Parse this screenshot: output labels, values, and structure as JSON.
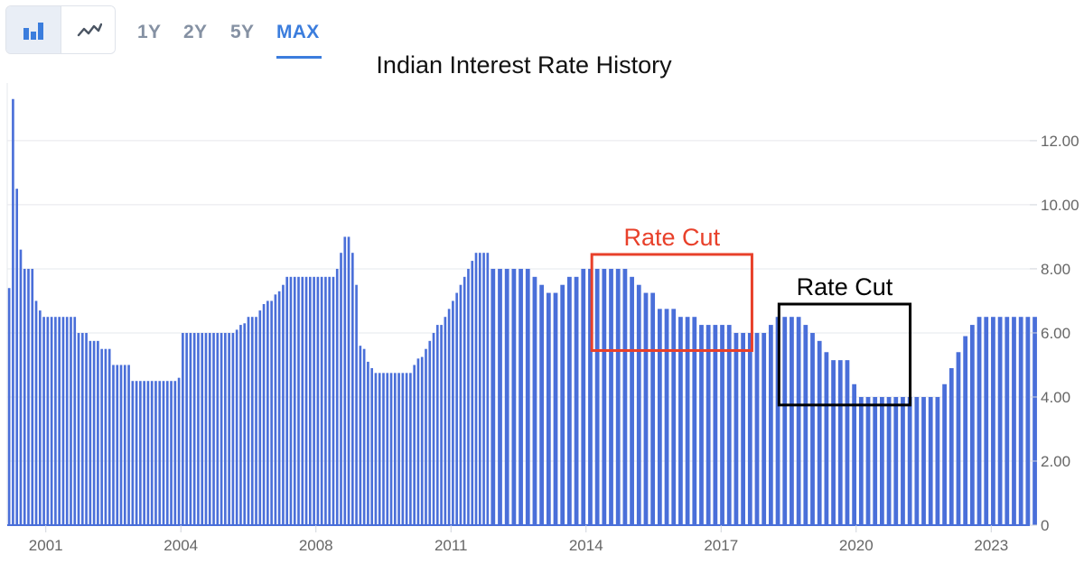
{
  "toolbar": {
    "chart_type_buttons": [
      {
        "name": "bar-chart-icon",
        "active": true
      },
      {
        "name": "line-chart-icon",
        "active": false
      }
    ],
    "ranges": [
      "1Y",
      "2Y",
      "5Y",
      "MAX"
    ],
    "active_range": "MAX"
  },
  "colors": {
    "bar": "#4a6fd9",
    "axis": "#4a6fd9",
    "grid": "#e6e8ec",
    "tick_text": "#666666",
    "accent": "#3b7ddd",
    "annotation_red": "#e8402a",
    "annotation_black": "#000000"
  },
  "chart_data": {
    "type": "bar",
    "title": "Indian Interest Rate History",
    "xlabel": "",
    "ylabel": "",
    "ylim": [
      0,
      13.8
    ],
    "y_ticks": [
      {
        "value": 0,
        "label": "0"
      },
      {
        "value": 2,
        "label": "2.00"
      },
      {
        "value": 4,
        "label": "4.00"
      },
      {
        "value": 6,
        "label": "6.00"
      },
      {
        "value": 8,
        "label": "8.00"
      },
      {
        "value": 10,
        "label": "10.00"
      },
      {
        "value": 12,
        "label": "12.00"
      }
    ],
    "x_ticks": [
      {
        "year": 2001.0,
        "label": "2001"
      },
      {
        "year": 2004.5,
        "label": "2004"
      },
      {
        "year": 2008.0,
        "label": "2008"
      },
      {
        "year": 2011.5,
        "label": "2011"
      },
      {
        "year": 2015.0,
        "label": "2014"
      },
      {
        "year": 2018.5,
        "label": "2017"
      },
      {
        "year": 2022.0,
        "label": "2020"
      },
      {
        "year": 2025.5,
        "label": "2023"
      }
    ],
    "x_range": [
      2000.0,
      2026.5
    ],
    "grid": true,
    "legend": "none",
    "segments": [
      {
        "start": 2000.0,
        "step": 0.1,
        "values": [
          7.4,
          13.3,
          10.5,
          8.6,
          8.0,
          8.0,
          8.0,
          7.0,
          6.7,
          6.5,
          6.5,
          6.5,
          6.5,
          6.5,
          6.5,
          6.5,
          6.5,
          6.5,
          6.0,
          6.0,
          6.0,
          5.75,
          5.75,
          5.75,
          5.5,
          5.5,
          5.5,
          5.0,
          5.0,
          5.0,
          5.0,
          5.0,
          4.5,
          4.5,
          4.5,
          4.5,
          4.5,
          4.5,
          4.5,
          4.5,
          4.5,
          4.5,
          4.5,
          4.5,
          4.6,
          6.0,
          6.0,
          6.0,
          6.0,
          6.0,
          6.0,
          6.0,
          6.0,
          6.0,
          6.0,
          6.0,
          6.0,
          6.0,
          6.0,
          6.1,
          6.25,
          6.3,
          6.5,
          6.5,
          6.5,
          6.7,
          6.9,
          7.0,
          7.0,
          7.2,
          7.3,
          7.5,
          7.75,
          7.75,
          7.75,
          7.75,
          7.75,
          7.75,
          7.75,
          7.75,
          7.75,
          7.75,
          7.75,
          7.75,
          7.75,
          8.0,
          8.5,
          9.0,
          9.0,
          8.5,
          7.5,
          5.6,
          5.5,
          5.1,
          4.9,
          4.75,
          4.75,
          4.75,
          4.75,
          4.75,
          4.75,
          4.75,
          4.75,
          4.75,
          4.75,
          5.0,
          5.2,
          5.25,
          5.5,
          5.75,
          6.0,
          6.25,
          6.25,
          6.5,
          6.75,
          7.0,
          7.25,
          7.5,
          7.75,
          8.0,
          8.25,
          8.5,
          8.5,
          8.5,
          8.5
        ]
      },
      {
        "start": 2012.5,
        "step": 0.18,
        "values": [
          8.0,
          8.0,
          8.0,
          8.0,
          8.0,
          8.0,
          7.75,
          7.5,
          7.25,
          7.25,
          7.5,
          7.75,
          7.75,
          8.0,
          8.0,
          8.0,
          8.0,
          8.0,
          8.0,
          8.0,
          7.75,
          7.5,
          7.25,
          7.25,
          6.75,
          6.75,
          6.75,
          6.5,
          6.5,
          6.5,
          6.25,
          6.25,
          6.25,
          6.25,
          6.25,
          6.0,
          6.0,
          6.0,
          6.0,
          6.0,
          6.25,
          6.5,
          6.5,
          6.5,
          6.5,
          6.25,
          6.0,
          5.75,
          5.4,
          5.15,
          5.15,
          5.15,
          4.4,
          4.0,
          4.0,
          4.0,
          4.0,
          4.0,
          4.0,
          4.0,
          4.0,
          4.0,
          4.0,
          4.0,
          4.0,
          4.4,
          4.9,
          5.4,
          5.9,
          6.25,
          6.5,
          6.5,
          6.5,
          6.5,
          6.5,
          6.5,
          6.5,
          6.5,
          6.5
        ]
      }
    ],
    "annotations": [
      {
        "label": "Rate Cut",
        "color": "annotation_red",
        "x0": 2015.15,
        "x1": 2019.3,
        "y0": 5.45,
        "y1": 8.45,
        "label_pos": "above"
      },
      {
        "label": "Rate Cut",
        "color": "annotation_black",
        "x0": 2020.0,
        "x1": 2023.4,
        "y0": 3.75,
        "y1": 6.9,
        "label_pos": "above"
      }
    ]
  }
}
